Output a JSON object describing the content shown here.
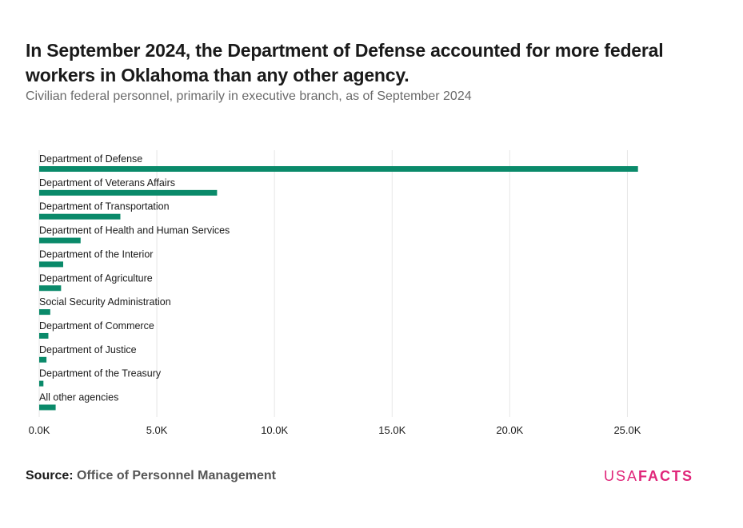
{
  "title": "In September 2024, the Department of Defense accounted for more federal workers in Oklahoma than any other agency.",
  "subtitle": "Civilian federal personnel, primarily in executive branch, as of September 2024",
  "source": {
    "label": "Source:",
    "value": "Office of Personnel Management"
  },
  "logo": {
    "light": "USA",
    "bold": "FACTS"
  },
  "colors": {
    "bar": "#0a8a6a",
    "grid": "#e6e6e6",
    "logo": "#e0267a"
  },
  "chart_data": {
    "type": "bar",
    "orientation": "horizontal",
    "categories": [
      "Department of Defense",
      "Department of Veterans Affairs",
      "Department of Transportation",
      "Department of Health and Human Services",
      "Department of the Interior",
      "Department of Agriculture",
      "Social Security Administration",
      "Department of Commerce",
      "Department of Justice",
      "Department of the Treasury",
      "All other agencies"
    ],
    "values": [
      25450,
      7560,
      3450,
      1760,
      1020,
      930,
      470,
      390,
      310,
      180,
      700
    ],
    "xlim": [
      0,
      27500
    ],
    "xticks": [
      0,
      5000,
      10000,
      15000,
      20000,
      25000
    ],
    "xtick_labels": [
      "0.0K",
      "5.0K",
      "10.0K",
      "15.0K",
      "20.0K",
      "25.0K"
    ],
    "grid": "vertical",
    "xlabel": "",
    "ylabel": ""
  }
}
